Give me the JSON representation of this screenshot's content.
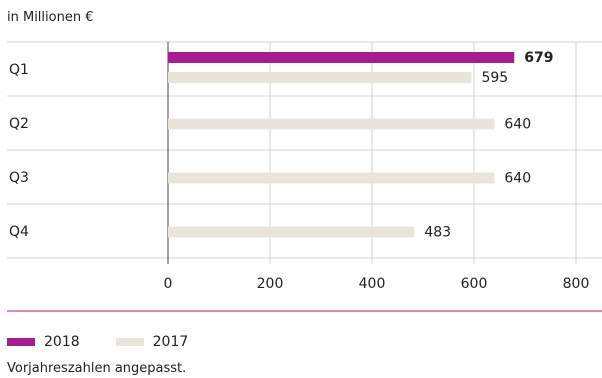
{
  "unit_label": "in Millionen €",
  "footnote": "Vorjahreszahlen angepasst.",
  "colors": {
    "series_2018": "#a61d90",
    "series_2017": "#e9e5dd",
    "accent_line": "#c0469d",
    "grid": "#c8c8c8"
  },
  "chart_data": {
    "type": "bar",
    "orientation": "horizontal",
    "title": "",
    "unit": "in Millionen €",
    "categories": [
      "Q1",
      "Q2",
      "Q3",
      "Q4"
    ],
    "series": [
      {
        "name": "2018",
        "values": [
          679,
          null,
          null,
          null
        ],
        "color": "#a61d90",
        "label_bold": true
      },
      {
        "name": "2017",
        "values": [
          595,
          640,
          640,
          483
        ],
        "color": "#e9e5dd",
        "label_bold": false
      }
    ],
    "xlim": [
      0,
      800
    ],
    "x_ticks": [
      0,
      200,
      400,
      600,
      800
    ],
    "grid": "vertical",
    "legend_position": "bottom-left"
  }
}
